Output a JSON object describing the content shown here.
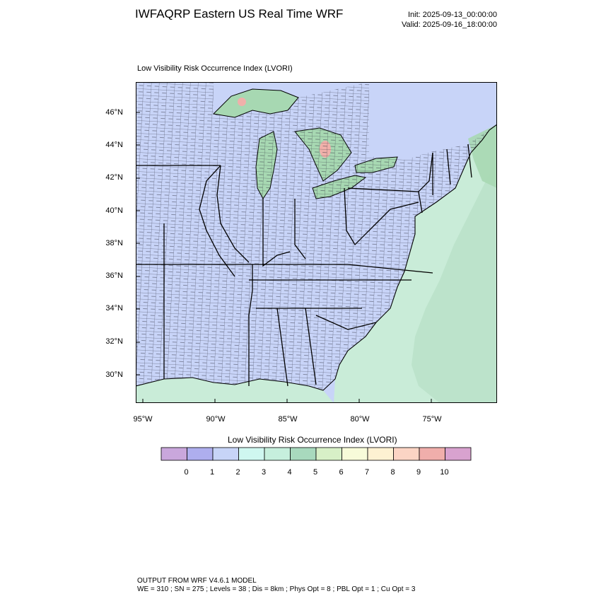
{
  "header": {
    "title": "IWFAQRP Eastern US Real Time WRF",
    "init": "Init: 2025-09-13_00:00:00",
    "valid": "Valid: 2025-09-16_18:00:00"
  },
  "plot": {
    "subtitle": "Low Visibility Risk Occurrence Index   (LVORI)",
    "lat_labels": [
      "46°N",
      "44°N",
      "42°N",
      "40°N",
      "38°N",
      "36°N",
      "34°N",
      "32°N",
      "30°N"
    ],
    "lon_labels": [
      "95°W",
      "90°W",
      "85°W",
      "80°W",
      "75°W"
    ]
  },
  "colorbar": {
    "title": "Low Visibility Risk Occurrence Index  (LVORI)",
    "labels": [
      "0",
      "1",
      "2",
      "3",
      "4",
      "5",
      "6",
      "7",
      "8",
      "9",
      "10"
    ],
    "colors": [
      "#c9a7dc",
      "#aeaeee",
      "#c7d4f7",
      "#cff7f0",
      "#c6efdd",
      "#a8d9bd",
      "#d7f0c7",
      "#f7fbd9",
      "#fdf1d2",
      "#fbd4c4",
      "#f0aeab",
      "#d8a2cf"
    ]
  },
  "map_colors": {
    "land": "#c8d4f8",
    "lake": "#c8d4f8",
    "ocean": "#c9ecd8",
    "ocean_dark": "#b6dfc6",
    "green": "#a7d8b2",
    "pink": "#f0b0aa",
    "yellow": "#eef5c6",
    "border": "#000000"
  },
  "footer": {
    "line1": "OUTPUT FROM WRF V4.6.1 MODEL",
    "line2": "WE = 310 ; SN = 275 ; Levels = 38 ; Dis = 8km ; Phys Opt = 8 ; PBL Opt = 1 ; Cu Opt = 3"
  }
}
